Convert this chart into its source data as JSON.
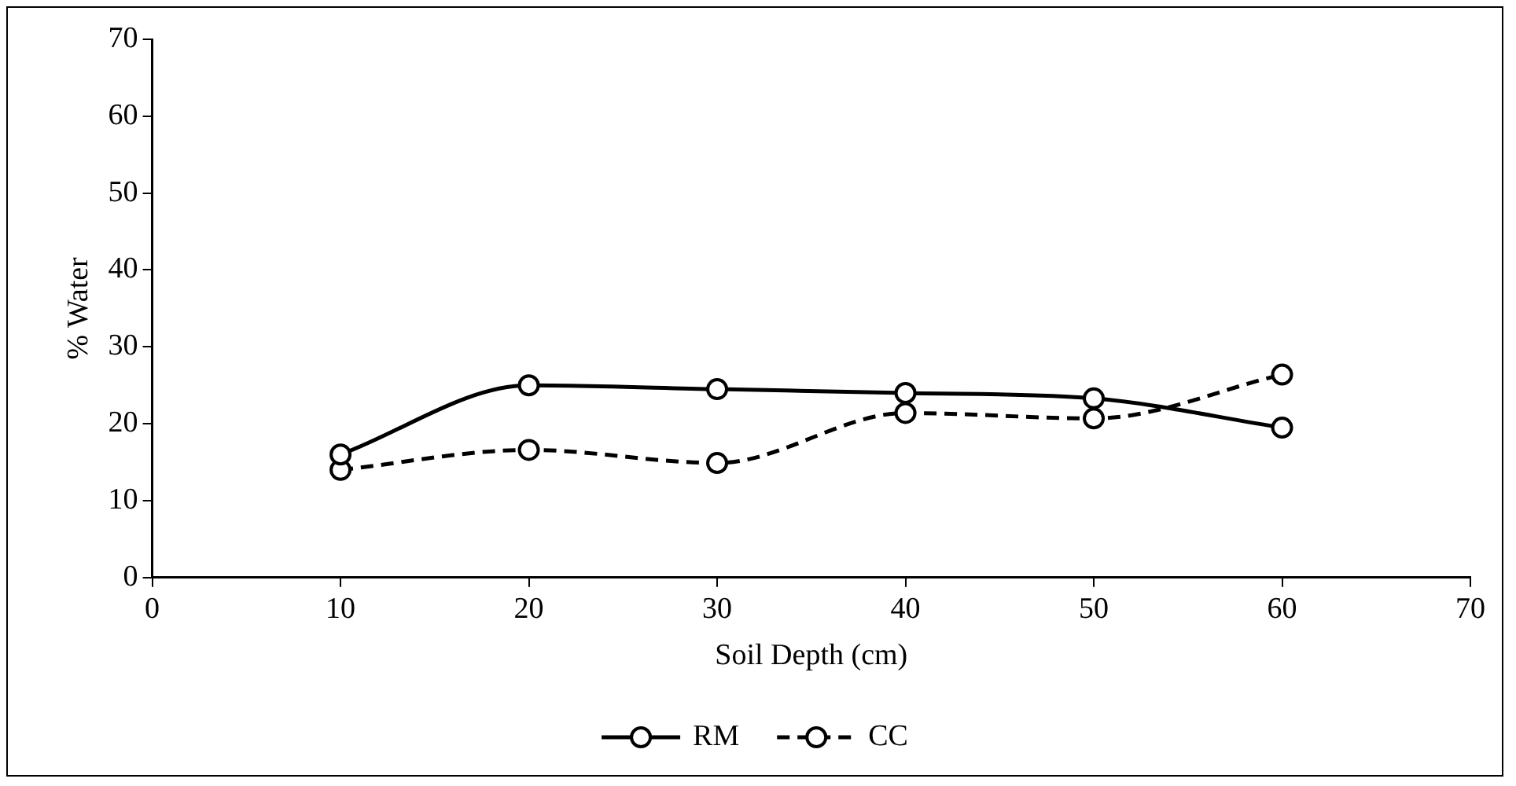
{
  "chart_data": {
    "type": "line",
    "xlabel": "Soil Depth (cm)",
    "ylabel": "% Water",
    "x": [
      10,
      20,
      30,
      40,
      50,
      60
    ],
    "series": [
      {
        "name": "RM",
        "color": "#000000",
        "values": [
          16,
          25,
          24.5,
          24,
          23.3,
          19.5
        ],
        "line_style": "solid"
      },
      {
        "name": "CC",
        "color": "#000000",
        "values": [
          14,
          16.6,
          14.9,
          21.4,
          20.7,
          26.4
        ],
        "line_style": "dashed"
      }
    ],
    "xlim": [
      0,
      70
    ],
    "xticks": [
      0,
      10,
      20,
      30,
      40,
      50,
      60,
      70
    ],
    "ylim": [
      0,
      70
    ],
    "yticks": [
      0,
      10,
      20,
      30,
      40,
      50,
      60,
      70
    ],
    "grid": false,
    "legend": "bottom",
    "marker": "circle"
  }
}
